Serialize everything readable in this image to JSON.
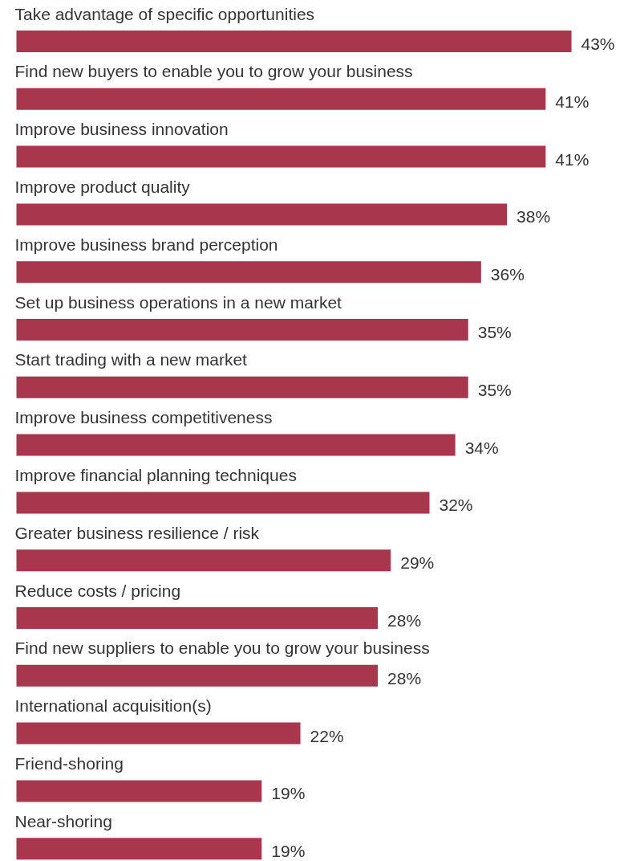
{
  "chart_data": {
    "type": "bar",
    "orientation": "horizontal",
    "categories": [
      "Take advantage of specific opportunities",
      "Find new buyers to enable you to grow your business",
      "Improve business innovation",
      "Improve product quality",
      "Improve business brand perception",
      "Set up business operations in a new market",
      "Start trading with a new market",
      "Improve business competitiveness",
      "Improve financial planning techniques",
      "Greater business resilience / risk",
      "Reduce costs / pricing",
      "Find new suppliers to enable you to grow your business",
      "International acquisition(s)",
      "Friend-shoring",
      "Near-shoring"
    ],
    "values": [
      43,
      41,
      41,
      38,
      36,
      35,
      35,
      34,
      32,
      29,
      28,
      28,
      22,
      19,
      19
    ],
    "value_labels": [
      "43%",
      "41%",
      "41%",
      "38%",
      "36%",
      "35%",
      "35%",
      "34%",
      "32%",
      "29%",
      "28%",
      "28%",
      "22%",
      "19%",
      "19%"
    ],
    "color": "#a8364d"
  }
}
